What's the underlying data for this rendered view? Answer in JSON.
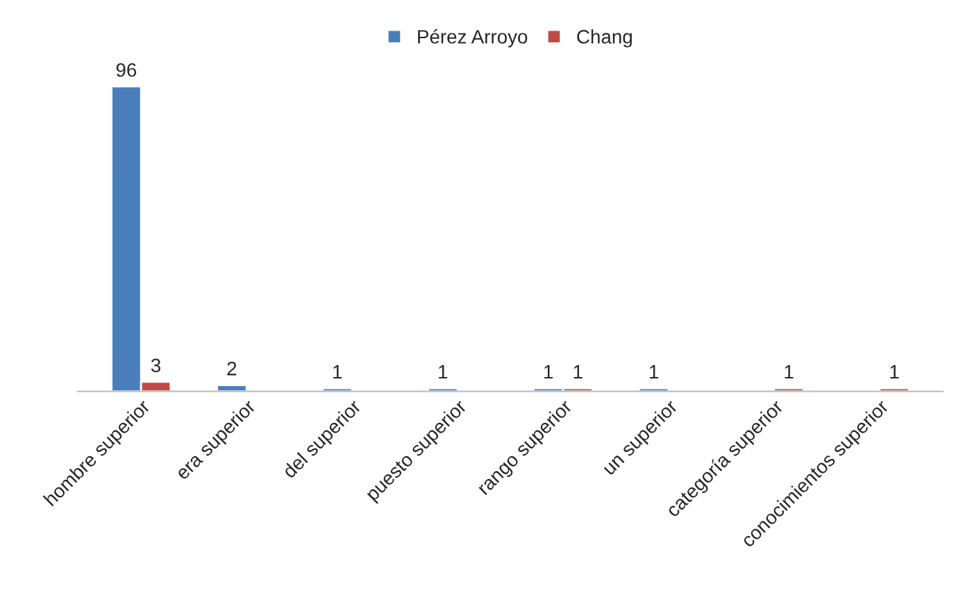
{
  "chart_data": {
    "type": "bar",
    "categories": [
      "hombre superior",
      "era superior",
      "del superior",
      "puesto superior",
      "rango superior",
      "un superior",
      "categoría superior",
      "conocimientos superior"
    ],
    "series": [
      {
        "name": "Pérez Arroyo",
        "color": "#4a7ebb",
        "values": [
          96,
          2,
          1,
          1,
          1,
          1,
          null,
          null
        ]
      },
      {
        "name": "Chang",
        "color": "#be4b48",
        "values": [
          3,
          null,
          null,
          null,
          1,
          null,
          1,
          1
        ]
      }
    ],
    "data_labels": true,
    "legend": "top",
    "grid": false,
    "tick_labels": "x"
  }
}
